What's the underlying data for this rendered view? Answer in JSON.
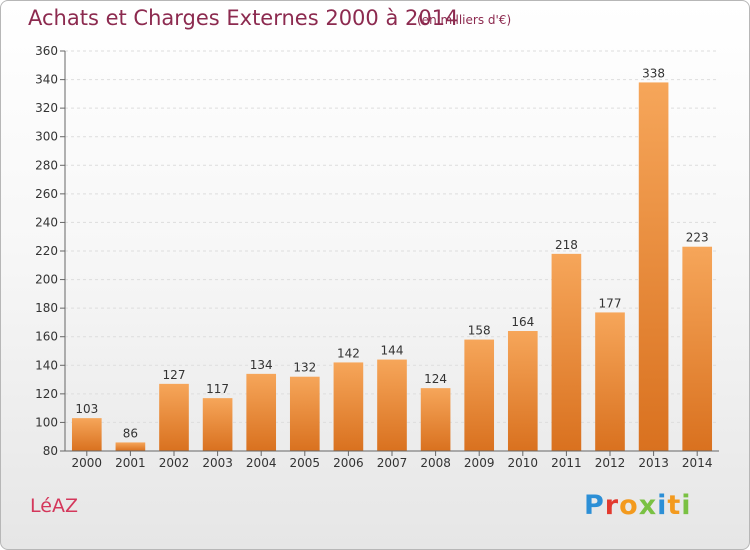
{
  "title": "Achats et Charges Externes 2000 à 2014",
  "unit": "(en milliers d'€)",
  "town": "LéAZ",
  "logo": {
    "text": "Proxiti"
  },
  "colors": {
    "bar_light": "#f6a65a",
    "bar_dark": "#d9711f",
    "title": "#8c2a4f"
  },
  "chart_data": {
    "type": "bar",
    "title": "Achats et Charges Externes 2000 à 2014",
    "subtitle": "(en milliers d'€)",
    "categories": [
      "2000",
      "2001",
      "2002",
      "2003",
      "2004",
      "2005",
      "2006",
      "2007",
      "2008",
      "2009",
      "2010",
      "2011",
      "2012",
      "2013",
      "2014"
    ],
    "values": [
      103,
      86,
      127,
      117,
      134,
      132,
      142,
      144,
      124,
      158,
      164,
      218,
      177,
      338,
      223
    ],
    "ylim": [
      80,
      360
    ],
    "yticks": [
      80,
      100,
      120,
      140,
      160,
      180,
      200,
      220,
      240,
      260,
      280,
      300,
      320,
      340,
      360
    ],
    "grid": true,
    "data_labels": true
  }
}
